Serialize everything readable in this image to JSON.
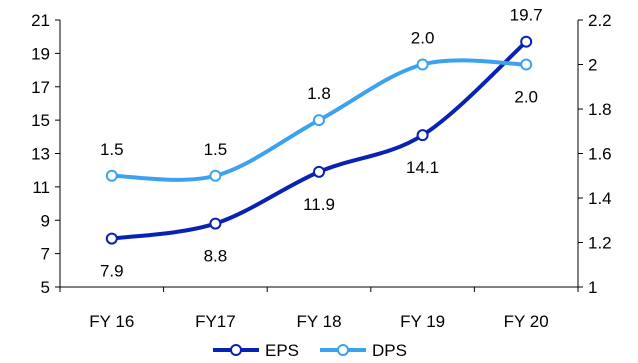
{
  "chart_data": {
    "type": "line",
    "categories": [
      "FY 16",
      "FY17",
      "FY 18",
      "FY 19",
      "FY 20"
    ],
    "series": [
      {
        "name": "EPS",
        "axis": "left",
        "color": "#0A22B4",
        "values": [
          7.9,
          8.8,
          11.9,
          14.1,
          19.7
        ],
        "labels": [
          "7.9",
          "8.8",
          "11.9",
          "14.1",
          "19.7"
        ]
      },
      {
        "name": "DPS",
        "axis": "right",
        "color": "#3DA2EE",
        "values": [
          1.5,
          1.5,
          1.75,
          2.0,
          2.0
        ],
        "labels": [
          "1.5",
          "1.5",
          "1.8",
          "2.0",
          "2.0"
        ]
      }
    ],
    "left_axis": {
      "min": 5,
      "max": 21,
      "ticks": [
        "5",
        "7",
        "9",
        "11",
        "13",
        "15",
        "17",
        "19",
        "21"
      ]
    },
    "right_axis": {
      "min": 1,
      "max": 2.2,
      "ticks": [
        "1",
        "1.2",
        "1.4",
        "1.6",
        "1.8",
        "2",
        "2.2"
      ]
    },
    "grid": false,
    "legend_position": "bottom"
  }
}
